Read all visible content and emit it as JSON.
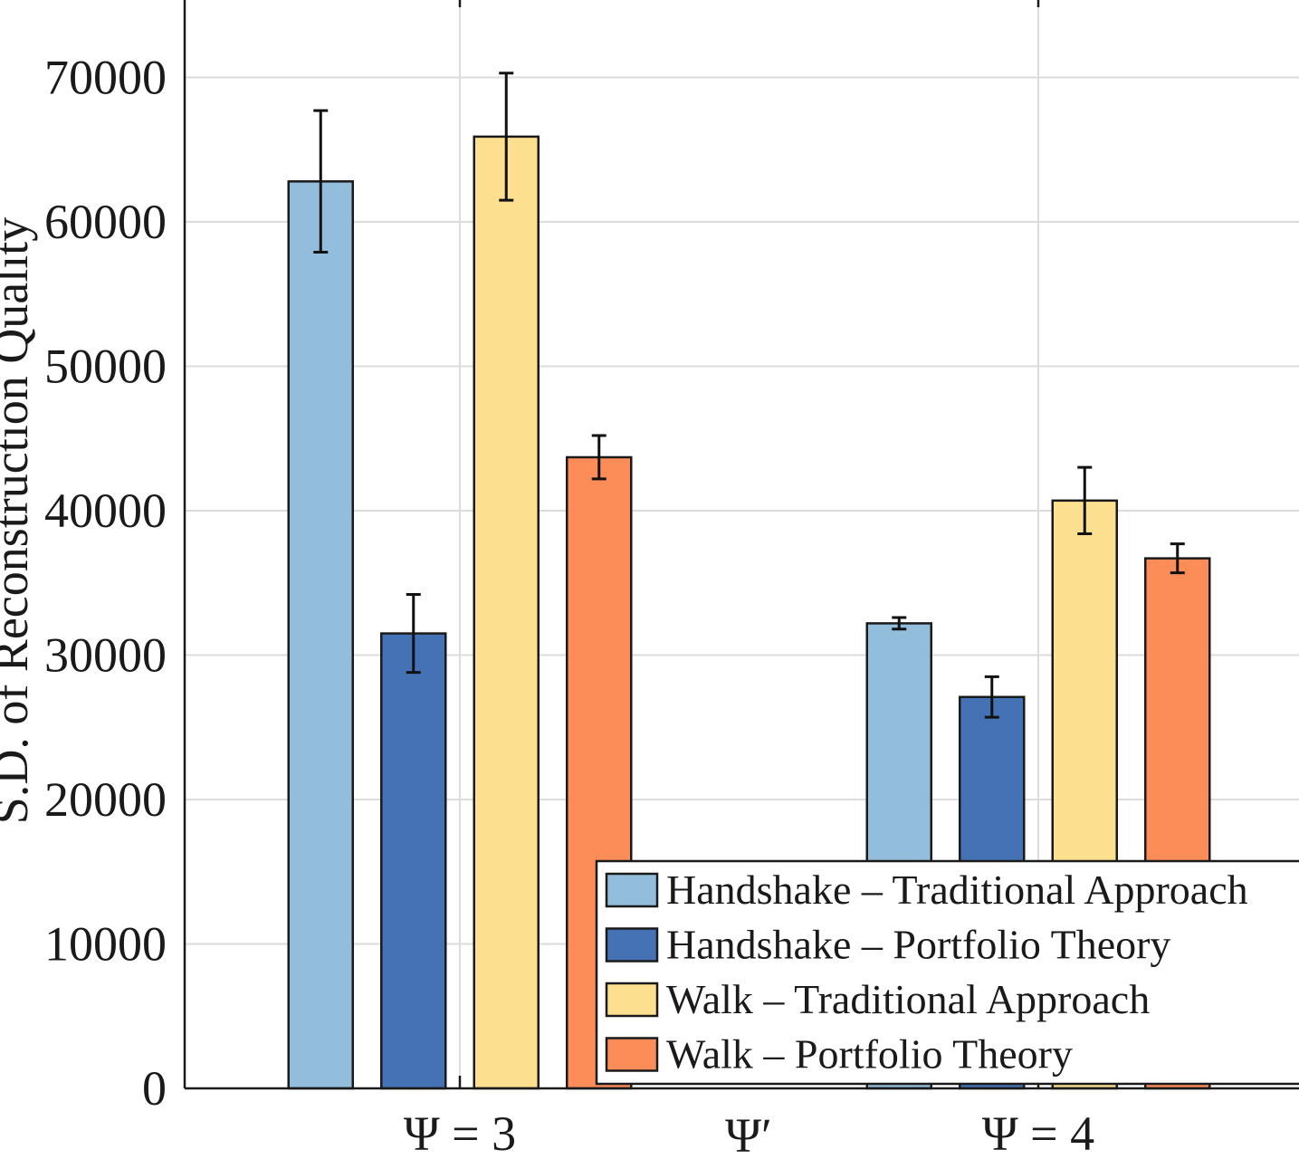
{
  "chart_data": {
    "type": "bar",
    "title": "",
    "xlabel": "Ψ′",
    "ylabel": "S.D. of Reconstruction Quality",
    "categories": [
      "Ψ = 3",
      "Ψ = 4"
    ],
    "ylim": [
      0,
      75000
    ],
    "yticks": [
      0,
      10000,
      20000,
      30000,
      40000,
      50000,
      60000,
      70000
    ],
    "ytick_labels": [
      "0",
      "10000",
      "20000",
      "30000",
      "40000",
      "50000",
      "60000",
      "70000"
    ],
    "grid": true,
    "legend_position": "bottom-right",
    "series": [
      {
        "name": "Handshake – Traditional Approach",
        "color": "#92bedb",
        "values": [
          62800,
          32200
        ],
        "errors": [
          4900,
          400
        ]
      },
      {
        "name": "Handshake – Portfolio Theory",
        "color": "#4472b4",
        "values": [
          31500,
          27100
        ],
        "errors": [
          2700,
          1400
        ]
      },
      {
        "name": "Walk – Traditional Approach",
        "color": "#fcdf8f",
        "values": [
          65900,
          40700
        ],
        "errors": [
          4400,
          2300
        ]
      },
      {
        "name": "Walk – Portfolio Theory",
        "color": "#fc8d59",
        "values": [
          43700,
          36700
        ],
        "errors": [
          1500,
          1000
        ]
      }
    ]
  }
}
